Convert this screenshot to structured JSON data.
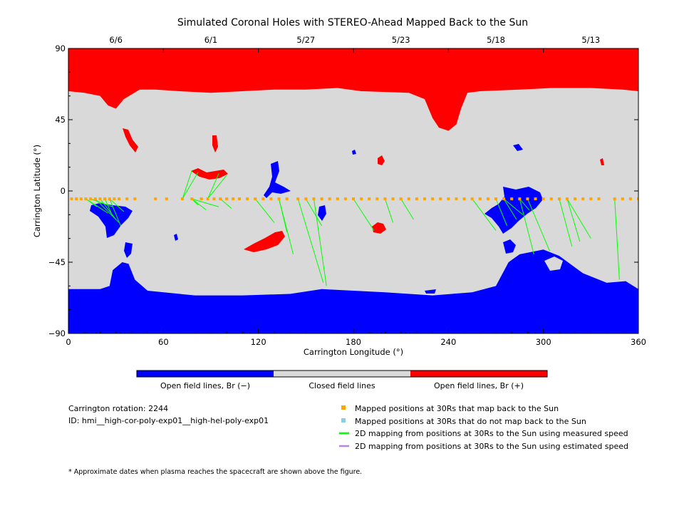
{
  "chart_data": {
    "type": "map",
    "title": "Simulated Coronal Holes with STEREO-Ahead Mapped Back to the Sun",
    "xlabel": "Carrington Longitude (°)",
    "ylabel": "Carrington Latitude (°)",
    "xlim": [
      0,
      360
    ],
    "ylim": [
      -90,
      90
    ],
    "xticks": [
      "0",
      "60",
      "120",
      "180",
      "240",
      "300",
      "360"
    ],
    "yticks": [
      "90",
      "45",
      "0",
      "−45",
      "−90"
    ],
    "top_axis_dates": [
      {
        "label": "6/6",
        "lon": 30
      },
      {
        "label": "6/1",
        "lon": 90
      },
      {
        "label": "5/27",
        "lon": 150
      },
      {
        "label": "5/23",
        "lon": 210
      },
      {
        "label": "5/18",
        "lon": 270
      },
      {
        "label": "5/13",
        "lon": 330
      }
    ],
    "colorbar": [
      {
        "label": "Open field lines, Br (−)",
        "color": "#0000ff"
      },
      {
        "label": "Closed field lines",
        "color": "#d9d9d9"
      },
      {
        "label": "Open field lines, Br (+)",
        "color": "#ff0000"
      }
    ],
    "north_polar_boundary_lat": [
      [
        0,
        63
      ],
      [
        10,
        62
      ],
      [
        20,
        60
      ],
      [
        25,
        54
      ],
      [
        30,
        52
      ],
      [
        35,
        58
      ],
      [
        45,
        64
      ],
      [
        55,
        64
      ],
      [
        70,
        63
      ],
      [
        90,
        62
      ],
      [
        110,
        63
      ],
      [
        130,
        64
      ],
      [
        150,
        64
      ],
      [
        170,
        65
      ],
      [
        185,
        63
      ],
      [
        215,
        62
      ],
      [
        225,
        58
      ],
      [
        230,
        46
      ],
      [
        234,
        40
      ],
      [
        240,
        38
      ],
      [
        245,
        42
      ],
      [
        248,
        52
      ],
      [
        252,
        62
      ],
      [
        260,
        63
      ],
      [
        285,
        64
      ],
      [
        305,
        65
      ],
      [
        330,
        65
      ],
      [
        350,
        64
      ],
      [
        360,
        63
      ]
    ],
    "south_polar_boundary_lat": [
      [
        0,
        -62
      ],
      [
        20,
        -62
      ],
      [
        26,
        -60
      ],
      [
        28,
        -50
      ],
      [
        34,
        -45
      ],
      [
        38,
        -46
      ],
      [
        42,
        -56
      ],
      [
        50,
        -63
      ],
      [
        80,
        -66
      ],
      [
        110,
        -66
      ],
      [
        140,
        -65
      ],
      [
        160,
        -62
      ],
      [
        180,
        -63
      ],
      [
        200,
        -64
      ],
      [
        230,
        -66
      ],
      [
        255,
        -64
      ],
      [
        270,
        -60
      ],
      [
        278,
        -45
      ],
      [
        285,
        -40
      ],
      [
        300,
        -37
      ],
      [
        310,
        -41
      ],
      [
        325,
        -52
      ],
      [
        340,
        -58
      ],
      [
        352,
        -57
      ],
      [
        360,
        -62
      ]
    ],
    "mapped_positions_lat": -5,
    "mapped_positions_lon": [
      2,
      5,
      8,
      11,
      14,
      17,
      20,
      23,
      26,
      29,
      32,
      37,
      42,
      55,
      62,
      72,
      78,
      84,
      88,
      92,
      96,
      100,
      104,
      108,
      113,
      118,
      123,
      128,
      133,
      138,
      145,
      150,
      155,
      160,
      165,
      170,
      175,
      180,
      185,
      190,
      195,
      200,
      205,
      210,
      215,
      220,
      225,
      230,
      235,
      240,
      245,
      250,
      255,
      260,
      265,
      270,
      275,
      280,
      285,
      290,
      295,
      300,
      305,
      310,
      315,
      320,
      325,
      330,
      335,
      345,
      350,
      355,
      360
    ],
    "footpoints_lat_lon": [
      [
        -10,
        18
      ],
      [
        -12,
        22
      ],
      [
        -14,
        25
      ],
      [
        -16,
        28
      ],
      [
        -18,
        30
      ],
      [
        -20,
        32
      ],
      [
        -22,
        33
      ],
      [
        -13,
        35
      ],
      [
        -10,
        28
      ],
      [
        -9,
        82
      ],
      [
        -12,
        87
      ],
      [
        -10,
        95
      ],
      [
        -11,
        103
      ],
      [
        13,
        78
      ],
      [
        12,
        82
      ],
      [
        11,
        95
      ],
      [
        10,
        100
      ],
      [
        -20,
        130
      ],
      [
        -26,
        138
      ],
      [
        -40,
        142
      ],
      [
        -58,
        161
      ],
      [
        -60,
        163
      ],
      [
        -22,
        160
      ],
      [
        -25,
        193
      ],
      [
        -20,
        205
      ],
      [
        -18,
        218
      ],
      [
        -25,
        270
      ],
      [
        -22,
        277
      ],
      [
        -18,
        283
      ],
      [
        -15,
        287
      ],
      [
        -12,
        291
      ],
      [
        -40,
        294
      ],
      [
        -38,
        304
      ],
      [
        -35,
        318
      ],
      [
        -32,
        323
      ],
      [
        -30,
        330
      ],
      [
        -56,
        348
      ]
    ]
  },
  "info": {
    "carrington_rotation": "Carrington rotation: 2244",
    "model_id": "ID: hmi__high-cor-poly-exp01__high-hel-poly-exp01"
  },
  "legend": [
    {
      "label": "Mapped positions at 30Rs that map back to the Sun",
      "color": "#ffa500",
      "marker": "square"
    },
    {
      "label": "Mapped positions at 30Rs that do not map back to the Sun",
      "color": "#87ceeb",
      "marker": "square"
    },
    {
      "label": "2D mapping from positions at 30Rs to the Sun using measured speed",
      "color": "#00ff00",
      "marker": "line"
    },
    {
      "label": "2D mapping from positions at 30Rs to the Sun using estimated speed",
      "color": "#b784e8",
      "marker": "line"
    }
  ],
  "footnote": "* Approximate dates when plasma reaches the spacecraft are shown above the figure."
}
